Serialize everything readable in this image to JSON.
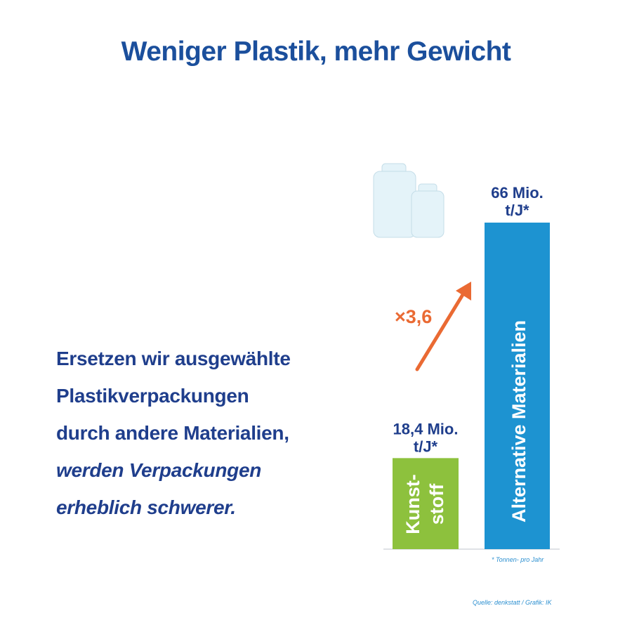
{
  "title": "Weniger Plastik, mehr Gewicht",
  "body_lines": [
    "Ersetzen wir ausgewählte",
    "Plastikverpackungen",
    "durch andere Materialien,"
  ],
  "body_lines_italic": [
    "werden Verpackungen",
    "erheblich schwerer."
  ],
  "multiplier_label": "×3,6",
  "footnote": "* Tonnen- pro Jahr",
  "source": "Quelle: denkstatt / Grafik: IK",
  "colors": {
    "title": "#1b4f9c",
    "text": "#1f3e8c",
    "kunststoff": "#8dc13d",
    "alternative": "#1d93d1",
    "arrow": "#ea6a33",
    "weights": "#e4f3f9"
  },
  "icon": "weights-icon",
  "chart_data": {
    "type": "bar",
    "categories": [
      "Kunststoff",
      "Alternative Materialien"
    ],
    "bar_labels": [
      [
        "Kunst-",
        "stoff"
      ],
      [
        "Alternative Materialien"
      ]
    ],
    "values": [
      18.4,
      66
    ],
    "value_labels": [
      [
        "18,4 Mio.",
        "t/J*"
      ],
      [
        "66 Mio.",
        "t/J*"
      ]
    ],
    "unit": "Mio. t/J",
    "xlabel": "",
    "ylabel": "",
    "ylim": [
      0,
      66
    ],
    "grid": false
  }
}
